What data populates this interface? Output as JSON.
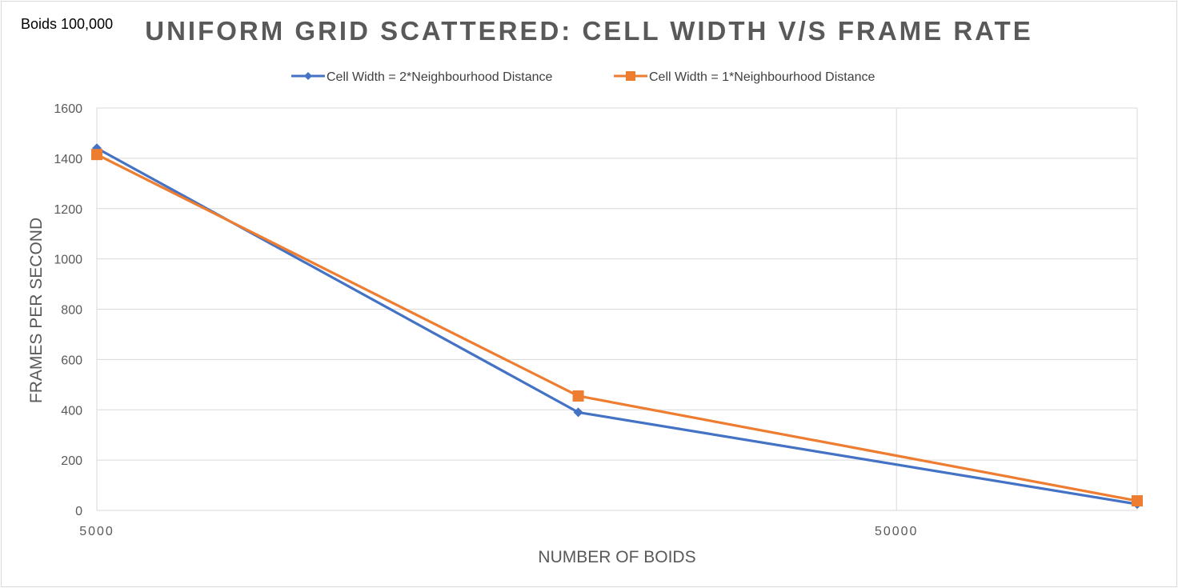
{
  "note": "Boids 100,000",
  "chart_data": {
    "type": "line",
    "title": "UNIFORM GRID SCATTERED: CELL WIDTH V/S FRAME RATE",
    "xlabel": "NUMBER OF BOIDS",
    "ylabel": "FRAMES PER SECOND",
    "x_scale": "log",
    "x": [
      5000,
      20000,
      100000
    ],
    "xlim": [
      5000,
      100000
    ],
    "x_tick_values": [
      5000,
      50000
    ],
    "x_tick_labels": [
      "5000",
      "50000"
    ],
    "ylim": [
      0,
      1600
    ],
    "y_ticks": [
      0,
      200,
      400,
      600,
      800,
      1000,
      1200,
      1400,
      1600
    ],
    "grid": "horizontal and vertical",
    "legend_position": "top",
    "series": [
      {
        "name": "Cell Width = 2*Neighbourhood Distance",
        "color": "#4472C4",
        "marker": "diamond",
        "values": [
          1440,
          390,
          25
        ]
      },
      {
        "name": "Cell Width = 1*Neighbourhood Distance",
        "color": "#ED7D31",
        "marker": "square",
        "values": [
          1415,
          455,
          38
        ]
      }
    ]
  }
}
